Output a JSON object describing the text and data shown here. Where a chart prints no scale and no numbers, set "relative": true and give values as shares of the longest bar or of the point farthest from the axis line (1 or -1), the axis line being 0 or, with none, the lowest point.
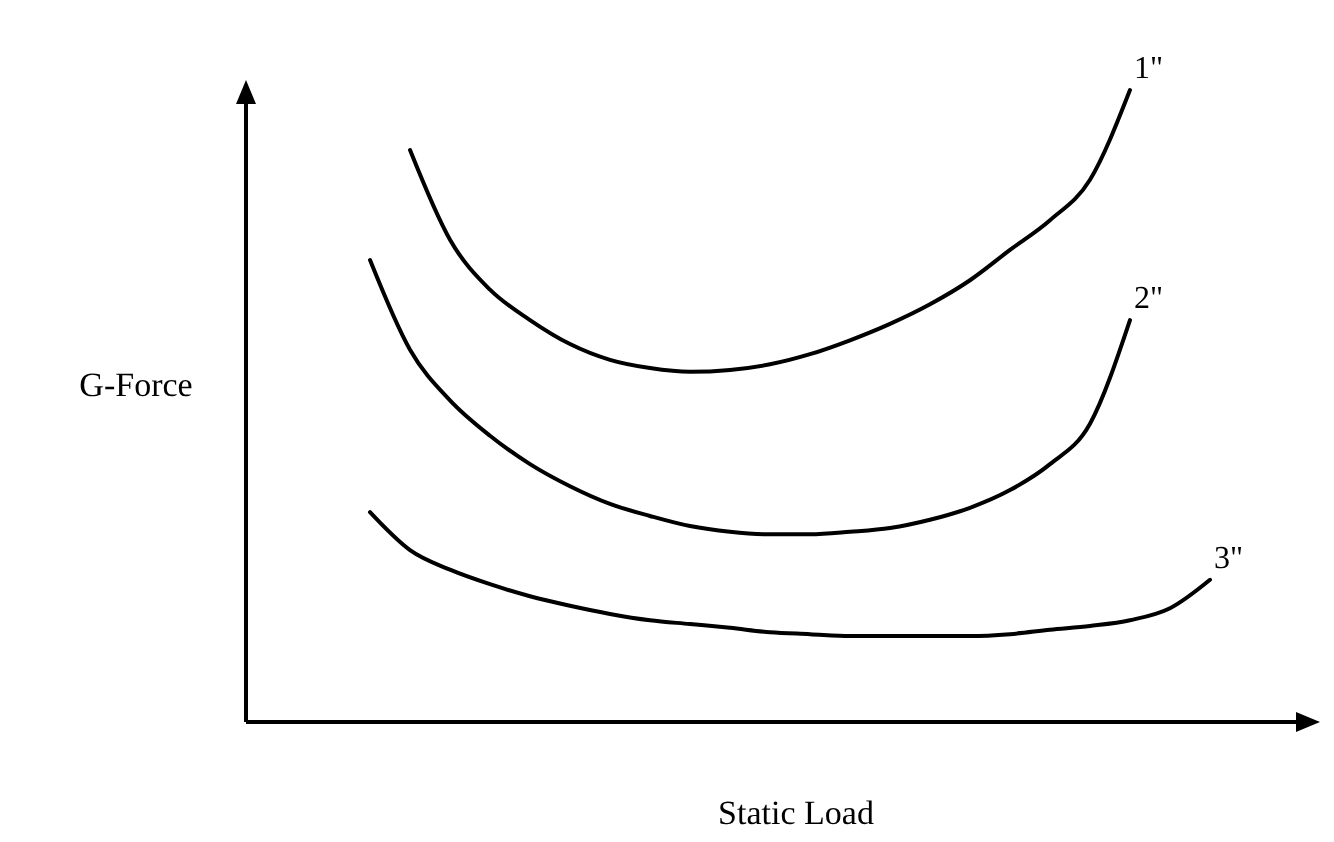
{
  "chart_data": {
    "type": "line",
    "xlabel": "Static Load",
    "ylabel": "G-Force",
    "relative": true,
    "categories": [
      null,
      null,
      null,
      null,
      null,
      null,
      null,
      null,
      null,
      null,
      null,
      null,
      null,
      null,
      null,
      null,
      null,
      null,
      null,
      null,
      null,
      null
    ],
    "series": [
      {
        "name": "1\"",
        "color": "#000000",
        "values": [
          null,
          0.905,
          0.763,
          0.684,
          0.636,
          0.598,
          0.573,
          0.56,
          0.554,
          0.557,
          0.566,
          0.582,
          0.604,
          0.63,
          0.661,
          0.699,
          0.747,
          0.794,
          0.858,
          1.0,
          null,
          null
        ]
      },
      {
        "name": "2\"",
        "color": "#000000",
        "values": [
          0.731,
          0.589,
          0.509,
          0.453,
          0.408,
          0.373,
          0.345,
          0.326,
          0.31,
          0.301,
          0.297,
          0.297,
          0.301,
          0.307,
          0.32,
          0.339,
          0.367,
          0.408,
          0.472,
          0.636,
          null,
          null
        ]
      },
      {
        "name": "3\"",
        "color": "#000000",
        "values": [
          0.332,
          0.272,
          0.241,
          0.218,
          0.199,
          0.184,
          0.171,
          0.161,
          0.155,
          0.149,
          0.142,
          0.139,
          0.136,
          0.136,
          0.136,
          0.136,
          0.139,
          0.146,
          0.152,
          0.161,
          0.18,
          0.225
        ]
      }
    ]
  }
}
